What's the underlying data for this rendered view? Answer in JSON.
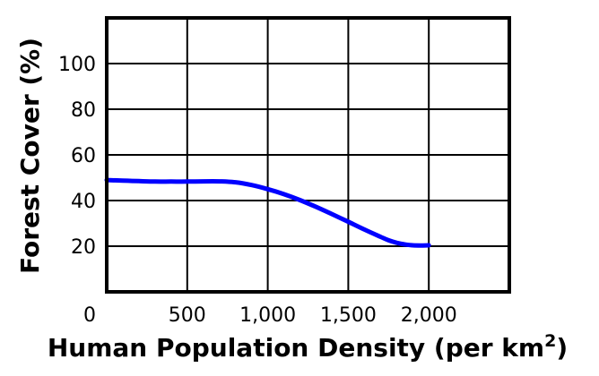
{
  "chart_data": {
    "type": "line",
    "xlabel": "Human Population Density (per km",
    "xlabel_sup": "2",
    "xlabel_end": ")",
    "ylabel": "Forest Cover (%)",
    "xlim": [
      0,
      2500
    ],
    "ylim": [
      0,
      120
    ],
    "grid": true,
    "x_ticks": [
      0,
      500,
      1000,
      1500,
      2000
    ],
    "x_tick_labels": [
      "0",
      "500",
      "1,000",
      "1,500",
      "2,000"
    ],
    "y_ticks": [
      20,
      40,
      60,
      80,
      100
    ],
    "y_tick_labels": [
      "20",
      "40",
      "60",
      "80",
      "100"
    ],
    "series": [
      {
        "color": "#0000ff",
        "x": [
          0,
          100,
          200,
          300,
          400,
          500,
          600,
          700,
          800,
          900,
          1000,
          1100,
          1200,
          1300,
          1400,
          1500,
          1600,
          1700,
          1750,
          1800,
          1850,
          1900,
          1950,
          2000
        ],
        "y": [
          49,
          48.7,
          48.5,
          48.3,
          48.3,
          48.3,
          48.4,
          48.4,
          48,
          46.8,
          45,
          42.8,
          40.2,
          37.2,
          34,
          30.7,
          27.3,
          24.1,
          22.6,
          21.5,
          20.8,
          20.4,
          20.3,
          20.4
        ]
      }
    ]
  }
}
